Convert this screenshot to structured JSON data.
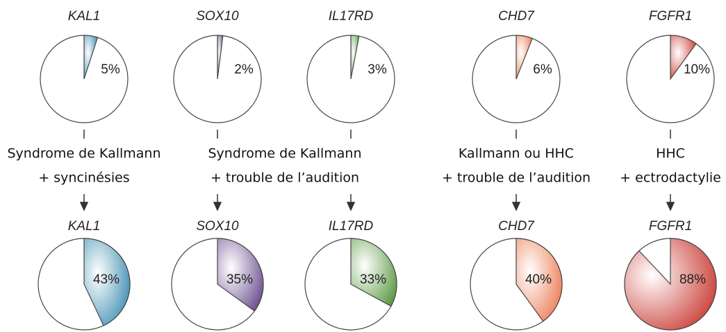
{
  "chart_data": [
    {
      "type": "pie",
      "title": "KAL1",
      "values": [
        5
      ],
      "color": "#3a8bb0"
    },
    {
      "type": "pie",
      "title": "SOX10",
      "values": [
        2
      ],
      "color": "#6b4f8e"
    },
    {
      "type": "pie",
      "title": "IL17RD",
      "values": [
        3
      ],
      "color": "#5f9a45"
    },
    {
      "type": "pie",
      "title": "CHD7",
      "values": [
        6
      ],
      "color": "#ec7a52"
    },
    {
      "type": "pie",
      "title": "FGFR1",
      "values": [
        10
      ],
      "color": "#c8362e"
    },
    {
      "type": "pie",
      "title": "KAL1",
      "values": [
        43
      ],
      "color": "#3a8bb0"
    },
    {
      "type": "pie",
      "title": "SOX10",
      "values": [
        35
      ],
      "color": "#6b4f8e"
    },
    {
      "type": "pie",
      "title": "IL17RD",
      "values": [
        33
      ],
      "color": "#5f9a45"
    },
    {
      "type": "pie",
      "title": "CHD7",
      "values": [
        40
      ],
      "color": "#ec7a52"
    },
    {
      "type": "pie",
      "title": "FGFR1",
      "values": [
        88
      ],
      "color": "#c8362e"
    }
  ],
  "phenotypes": [
    [
      "Syndrome de Kallmann",
      "+ syncinésies"
    ],
    [
      "Syndrome de Kallmann",
      "+ trouble de l’audition"
    ],
    [
      "Kallmann ou HHC",
      "+ trouble de l’audition"
    ],
    [
      "HHC",
      "+ ectrodactylie"
    ]
  ]
}
